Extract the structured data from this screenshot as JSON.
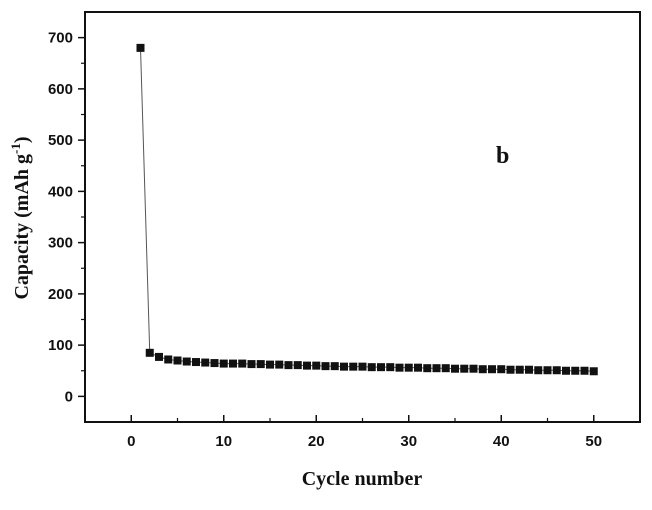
{
  "chart_data": {
    "type": "scatter",
    "panel_label": "b",
    "xlabel": "Cycle number",
    "ylabel_main": "Capacity (mAh g",
    "ylabel_sup": "-1",
    "ylabel_end": ")",
    "xlim": [
      -5,
      55
    ],
    "ylim": [
      -50,
      750
    ],
    "x_ticks": [
      0,
      10,
      20,
      30,
      40,
      50
    ],
    "y_ticks": [
      0,
      100,
      200,
      300,
      400,
      500,
      600,
      700
    ],
    "grid": false,
    "series": [
      {
        "color": "#111111",
        "marker": "square",
        "line": true,
        "x": [
          1,
          2,
          3,
          4,
          5,
          6,
          7,
          8,
          9,
          10,
          11,
          12,
          13,
          14,
          15,
          16,
          17,
          18,
          19,
          20,
          21,
          22,
          23,
          24,
          25,
          26,
          27,
          28,
          29,
          30,
          31,
          32,
          33,
          34,
          35,
          36,
          37,
          38,
          39,
          40,
          41,
          42,
          43,
          44,
          45,
          46,
          47,
          48,
          49,
          50
        ],
        "y": [
          680,
          85,
          77,
          72,
          70,
          68,
          67,
          66,
          65,
          64,
          64,
          64,
          63,
          63,
          62,
          62,
          61,
          61,
          60,
          60,
          59,
          59,
          58,
          58,
          58,
          57,
          57,
          57,
          56,
          56,
          56,
          55,
          55,
          55,
          54,
          54,
          54,
          53,
          53,
          53,
          52,
          52,
          52,
          51,
          51,
          51,
          50,
          50,
          50,
          49
        ]
      }
    ]
  }
}
